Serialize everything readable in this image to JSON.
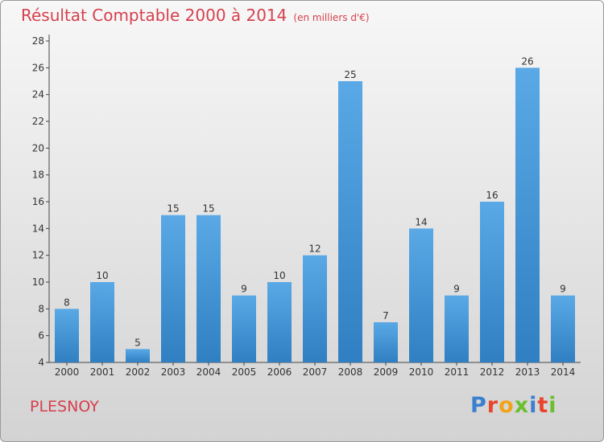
{
  "title": "Résultat Comptable 2000 à 2014",
  "subtitle": "(en milliers d'€)",
  "commune": "PLESNOY",
  "logo": {
    "text": "Proxiti",
    "colors": [
      "#3a7fd0",
      "#e8452c",
      "#f2a31a",
      "#6abf2e",
      "#3a7fd0",
      "#e8452c",
      "#6abf2e"
    ]
  },
  "colors": {
    "bar_top": "#5aa9e6",
    "bar_bottom": "#2f7fc2",
    "title": "#d5404d"
  },
  "chart_data": {
    "type": "bar",
    "categories": [
      "2000",
      "2001",
      "2002",
      "2003",
      "2004",
      "2005",
      "2006",
      "2007",
      "2008",
      "2009",
      "2010",
      "2011",
      "2012",
      "2013",
      "2014"
    ],
    "values": [
      8,
      10,
      5,
      15,
      15,
      9,
      10,
      12,
      25,
      7,
      14,
      9,
      16,
      26,
      9
    ],
    "ylim": [
      4,
      28
    ],
    "yticks": [
      4,
      6,
      8,
      10,
      12,
      14,
      16,
      18,
      20,
      22,
      24,
      26,
      28
    ],
    "grid": false,
    "data_labels": true
  }
}
